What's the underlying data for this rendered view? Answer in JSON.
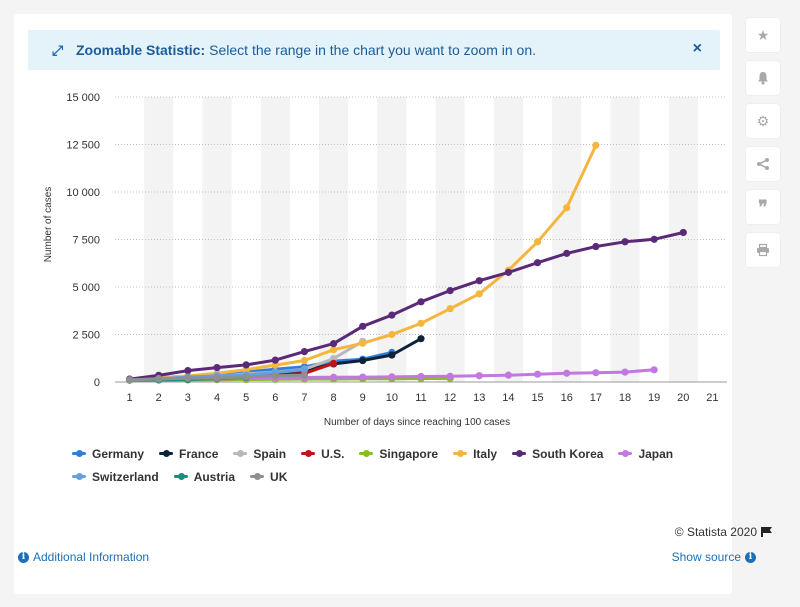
{
  "banner": {
    "title": "Zoomable Statistic:",
    "text": "Select the range in the chart you want to zoom in on.",
    "close": "×"
  },
  "chart_data": {
    "type": "line",
    "xlabel": "Number of days since reaching 100 cases",
    "ylabel": "Number of cases",
    "xlim": [
      1,
      21
    ],
    "ylim": [
      0,
      15000
    ],
    "x_ticks": [
      1,
      2,
      3,
      4,
      5,
      6,
      7,
      8,
      9,
      10,
      11,
      12,
      13,
      14,
      15,
      16,
      17,
      18,
      19,
      20,
      21
    ],
    "y_ticks": [
      0,
      2500,
      5000,
      7500,
      10000,
      12500,
      15000
    ],
    "y_tick_labels": [
      "0",
      "2 500",
      "5 000",
      "7 500",
      "10 000",
      "12 500",
      "15 000"
    ],
    "grid": true,
    "legend_position": "bottom",
    "series": [
      {
        "name": "Germany",
        "color": "#2f7ed8",
        "x": [
          1,
          2,
          3,
          4,
          5,
          6,
          7,
          8,
          9,
          10
        ],
        "values": [
          130,
          160,
          240,
          400,
          530,
          670,
          800,
          1100,
          1200,
          1560
        ]
      },
      {
        "name": "France",
        "color": "#0d233a",
        "x": [
          1,
          2,
          3,
          4,
          5,
          6,
          7,
          8,
          9,
          10,
          11
        ],
        "values": [
          100,
          130,
          190,
          210,
          280,
          420,
          610,
          950,
          1130,
          1420,
          2280
        ]
      },
      {
        "name": "Spain",
        "color": "#b9b9b9",
        "x": [
          1,
          2,
          3,
          4,
          5,
          6,
          7,
          8,
          9
        ],
        "values": [
          120,
          165,
          220,
          290,
          430,
          520,
          670,
          1230,
          2140
        ]
      },
      {
        "name": "U.S.",
        "color": "#c0141b",
        "x": [
          1,
          2,
          3,
          4,
          5,
          6,
          7,
          8
        ],
        "values": [
          100,
          125,
          160,
          220,
          280,
          330,
          450,
          980
        ]
      },
      {
        "name": "Singapore",
        "color": "#8bbc21",
        "x": [
          1,
          2,
          3,
          4,
          5,
          6,
          7,
          8,
          9,
          10,
          11,
          12
        ],
        "values": [
          100,
          102,
          110,
          120,
          130,
          140,
          150,
          160,
          165,
          175,
          180,
          190
        ]
      },
      {
        "name": "Italy",
        "color": "#f4b63f",
        "x": [
          1,
          2,
          3,
          4,
          5,
          6,
          7,
          8,
          9,
          10,
          11,
          12,
          13,
          14,
          15,
          16,
          17
        ],
        "values": [
          150,
          230,
          320,
          450,
          650,
          890,
          1130,
          1700,
          2040,
          2500,
          3090,
          3860,
          4640,
          5880,
          7380,
          9170,
          12460
        ]
      },
      {
        "name": "South Korea",
        "color": "#5a2a78",
        "x": [
          1,
          2,
          3,
          4,
          5,
          6,
          7,
          8,
          9,
          10,
          11,
          12,
          13,
          14,
          15,
          16,
          17,
          18,
          19,
          20
        ],
        "values": [
          150,
          350,
          600,
          760,
          900,
          1150,
          1600,
          2020,
          2930,
          3520,
          4220,
          4810,
          5330,
          5770,
          6280,
          6770,
          7130,
          7380,
          7510,
          7870
        ]
      },
      {
        "name": "Japan",
        "color": "#c377e0",
        "x": [
          1,
          2,
          3,
          4,
          5,
          6,
          7,
          8,
          9,
          10,
          11,
          12,
          13,
          14,
          15,
          16,
          17,
          18,
          19
        ],
        "values": [
          110,
          120,
          140,
          160,
          190,
          220,
          240,
          250,
          260,
          270,
          290,
          300,
          330,
          360,
          410,
          460,
          490,
          520,
          640
        ]
      },
      {
        "name": "Switzerland",
        "color": "#64a0e0",
        "x": [
          1,
          2,
          3,
          4,
          5,
          6,
          7
        ],
        "values": [
          100,
          180,
          260,
          330,
          370,
          500,
          640
        ]
      },
      {
        "name": "Austria",
        "color": "#1a8f7a",
        "x": [
          1,
          2,
          3,
          4,
          5
        ],
        "values": [
          100,
          110,
          130,
          180,
          240
        ]
      },
      {
        "name": "UK",
        "color": "#8f8f8f",
        "x": [
          1,
          2,
          3,
          4,
          5,
          6,
          7
        ],
        "values": [
          110,
          160,
          200,
          210,
          270,
          320,
          360
        ]
      }
    ]
  },
  "legend_rows": [
    [
      "Germany",
      "France",
      "Spain",
      "U.S.",
      "Singapore",
      "Italy",
      "South Korea",
      "Japan"
    ],
    [
      "Switzerland",
      "Austria",
      "UK"
    ]
  ],
  "footer": {
    "copyright": "© Statista 2020",
    "additional_info": "Additional Information",
    "show_source": "Show source"
  },
  "sidebar_icons": [
    "star-icon",
    "bell-icon",
    "gear-icon",
    "share-icon",
    "quote-icon",
    "print-icon"
  ]
}
